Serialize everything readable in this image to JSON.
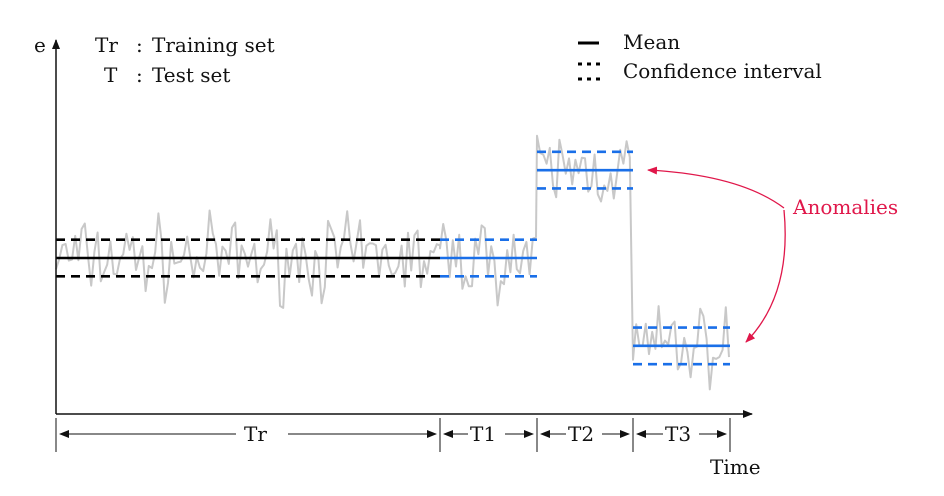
{
  "axes": {
    "y_label": "e",
    "x_label": "Time"
  },
  "legend_left": [
    {
      "symbol": "Tr",
      "separator": ":",
      "text": "Training set"
    },
    {
      "symbol": "T",
      "separator": ":",
      "text": "Test set"
    }
  ],
  "legend_right": [
    {
      "style": "solid",
      "text": "Mean"
    },
    {
      "style": "dotted",
      "text": "Confidence interval"
    }
  ],
  "annotation": {
    "text": "Anomalies",
    "color": "#e0174a"
  },
  "segments": [
    {
      "id": "training",
      "label": "Tr",
      "level": 0.0,
      "spread": 1.0,
      "color": "#000000"
    },
    {
      "id": "test-1",
      "label": "T1",
      "level": 0.0,
      "spread": 1.0,
      "color": "#1a6fe8"
    },
    {
      "id": "test-2",
      "label": "T2",
      "level": 4.8,
      "spread": 1.0,
      "color": "#1a6fe8"
    },
    {
      "id": "test-3",
      "label": "T3",
      "level": -4.8,
      "spread": 1.0,
      "color": "#1a6fe8"
    }
  ],
  "signal_color": "#c8c8c8"
}
